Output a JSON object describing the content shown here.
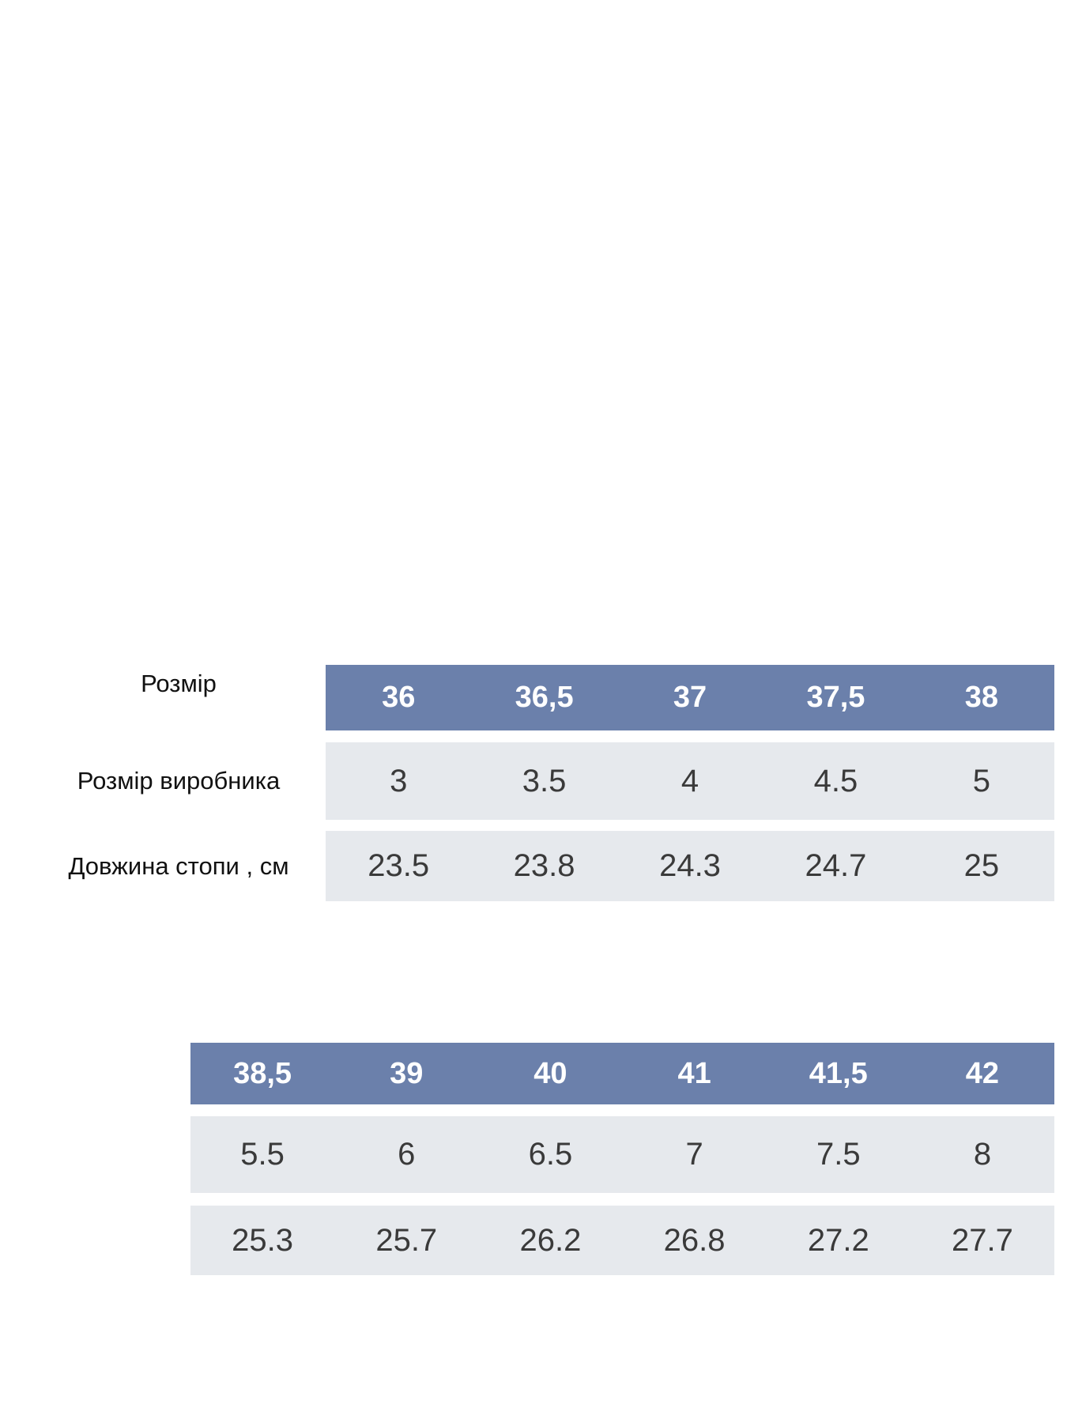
{
  "tables": [
    {
      "row_labels": [
        "Розмір",
        "Розмір виробника",
        "Довжина стопи , см"
      ],
      "rows": [
        [
          "36",
          "36,5",
          "37",
          "37,5",
          "38"
        ],
        [
          "3",
          "3.5",
          "4",
          "4.5",
          "5"
        ],
        [
          "23.5",
          "23.8",
          "24.3",
          "24.7",
          "25"
        ]
      ]
    },
    {
      "rows": [
        [
          "38,5",
          "39",
          "40",
          "41",
          "41,5",
          "42"
        ],
        [
          "5.5",
          "6",
          "6.5",
          "7",
          "7.5",
          "8"
        ],
        [
          "25.3",
          "25.7",
          "26.2",
          "26.8",
          "27.2",
          "27.7"
        ]
      ]
    }
  ]
}
